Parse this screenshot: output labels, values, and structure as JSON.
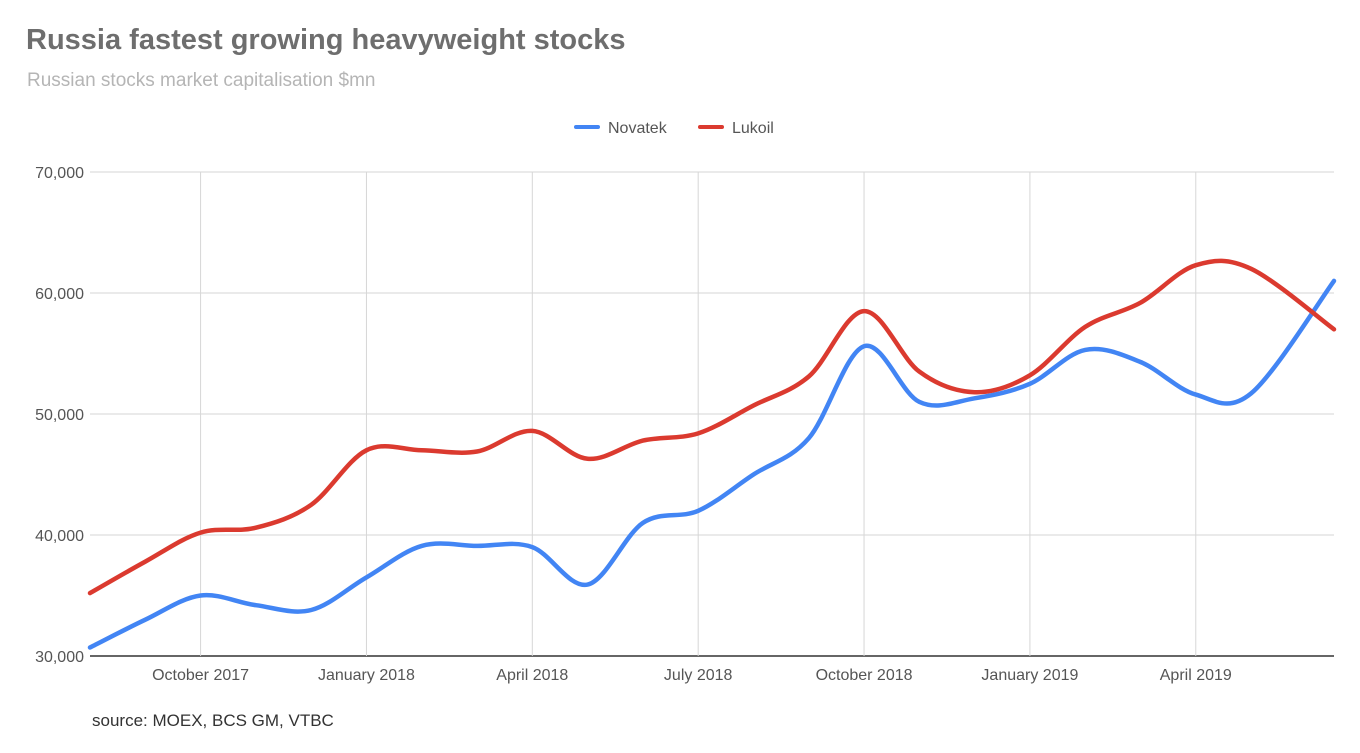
{
  "title": "Russia fastest growing heavyweight stocks",
  "subtitle": "Russian stocks market capitalisation $mn",
  "source": "source: MOEX, BCS GM, VTBC",
  "chart_data": {
    "type": "line",
    "title": "Russia fastest growing heavyweight stocks",
    "subtitle": "Russian stocks market capitalisation $mn",
    "xlabel": "",
    "ylabel": "",
    "ylim": [
      30000,
      70000
    ],
    "yticks": [
      30000,
      40000,
      50000,
      60000,
      70000
    ],
    "ytick_labels": [
      "30,000",
      "40,000",
      "50,000",
      "60,000",
      "70,000"
    ],
    "xlim": [
      -1,
      21.5
    ],
    "xticks": [
      1,
      4,
      7,
      10,
      13,
      16,
      19
    ],
    "xtick_labels": [
      "October 2017",
      "January 2018",
      "April 2018",
      "July 2018",
      "October 2018",
      "January 2019",
      "April 2019"
    ],
    "grid": true,
    "legend": "top-center",
    "x": [
      -1,
      0,
      1,
      2,
      3,
      4,
      5,
      6,
      7,
      8,
      9,
      10,
      11,
      12,
      13,
      14,
      15,
      16,
      17,
      18,
      19,
      20,
      21.5
    ],
    "series": [
      {
        "name": "Novatek",
        "color": "#4285f4",
        "values": [
          30700,
          33000,
          35000,
          34200,
          33800,
          36500,
          39100,
          39100,
          39000,
          35900,
          41000,
          42000,
          45000,
          48000,
          55600,
          51000,
          51300,
          52500,
          55300,
          54300,
          51600,
          51700,
          61000
        ]
      },
      {
        "name": "Lukoil",
        "color": "#db3a2f",
        "values": [
          35200,
          37800,
          40200,
          40600,
          42500,
          47000,
          47000,
          46900,
          48600,
          46300,
          47800,
          48400,
          50700,
          53100,
          58500,
          53500,
          51800,
          53200,
          57200,
          59200,
          62300,
          62000,
          57000
        ]
      }
    ]
  }
}
